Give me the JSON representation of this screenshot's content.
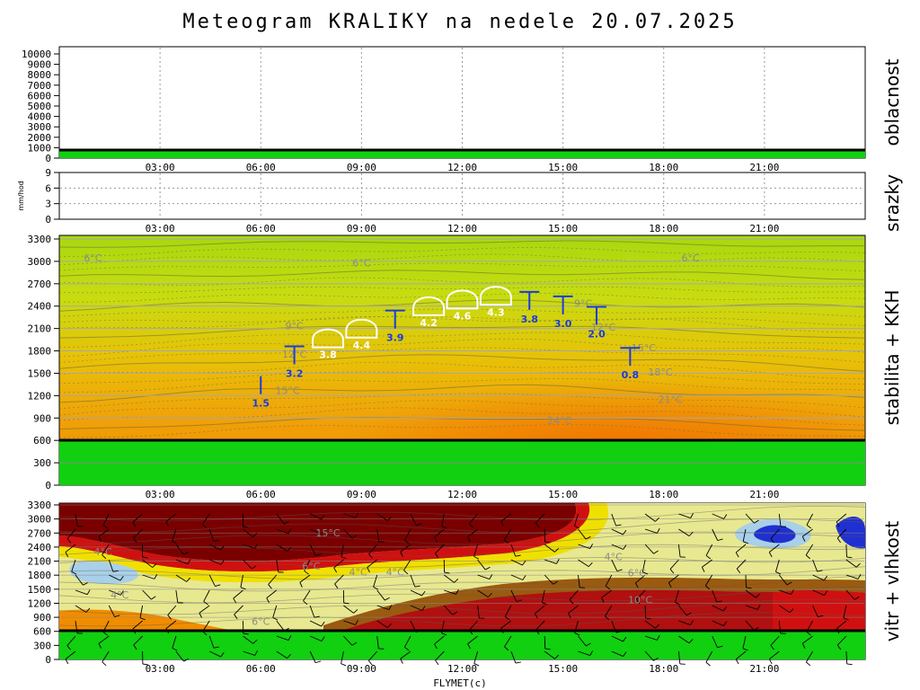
{
  "title": "Meteogram KRALIKY na nedele 20.07.2025",
  "footer": "FLYMET(c)",
  "colors": {
    "terrain": "#10d010",
    "panel_border": "#000000",
    "kkh_marker": "#1a3cdc",
    "kkh_cloud": "#ffffff"
  },
  "time_ticks": [
    "03:00",
    "06:00",
    "09:00",
    "12:00",
    "15:00",
    "18:00",
    "21:00"
  ],
  "chart_data": [
    {
      "panel": "oblacnost",
      "type": "area",
      "side_label": "oblacnost",
      "x_ticks": [
        "03:00",
        "06:00",
        "09:00",
        "12:00",
        "15:00",
        "18:00",
        "21:00"
      ],
      "y_ticks": [
        0,
        1000,
        2000,
        3000,
        4000,
        5000,
        6000,
        7000,
        8000,
        9000,
        10000
      ],
      "ylim": [
        0,
        10000
      ],
      "terrain_level": 650,
      "clouds": []
    },
    {
      "panel": "srazky",
      "type": "bar",
      "side_label": "srazky",
      "ylabel": "mm/hod",
      "x_ticks": [
        "03:00",
        "06:00",
        "09:00",
        "12:00",
        "15:00",
        "18:00",
        "21:00"
      ],
      "y_ticks": [
        0,
        3,
        6,
        9
      ],
      "ylim": [
        0,
        9
      ],
      "values": []
    },
    {
      "panel": "stabilita",
      "type": "heatmap",
      "side_label": "stabilita + KKH",
      "x_ticks": [
        "03:00",
        "06:00",
        "09:00",
        "12:00",
        "15:00",
        "18:00",
        "21:00"
      ],
      "y_ticks": [
        0,
        300,
        600,
        900,
        1200,
        1500,
        1800,
        2100,
        2400,
        2700,
        3000,
        3300
      ],
      "ylim": [
        0,
        3300
      ],
      "terrain_level": 650,
      "isotherm_labels": [
        {
          "text": "6°C",
          "time": 1.0,
          "alt": 3050
        },
        {
          "text": "6°C",
          "time": 9.0,
          "alt": 2980
        },
        {
          "text": "6°C",
          "time": 18.8,
          "alt": 3050
        },
        {
          "text": "9°C",
          "time": 7.0,
          "alt": 2140
        },
        {
          "text": "9°C",
          "time": 15.6,
          "alt": 2440
        },
        {
          "text": "12°C",
          "time": 7.0,
          "alt": 1760
        },
        {
          "text": "12°C",
          "time": 16.2,
          "alt": 2120
        },
        {
          "text": "15°C",
          "time": 6.8,
          "alt": 1270
        },
        {
          "text": "15°C",
          "time": 17.4,
          "alt": 1840
        },
        {
          "text": "18°C",
          "time": 17.9,
          "alt": 1520
        },
        {
          "text": "21°C",
          "time": 18.2,
          "alt": 1150
        },
        {
          "text": "24°C",
          "time": 14.9,
          "alt": 870
        }
      ],
      "kkh": [
        {
          "time": 6.0,
          "value": "1.5",
          "cloud": false,
          "alt": 1340
        },
        {
          "time": 7.0,
          "value": "3.2",
          "cloud": false,
          "alt": 1740
        },
        {
          "time": 8.0,
          "value": "3.8",
          "cloud": true,
          "alt": 1920
        },
        {
          "time": 9.0,
          "value": "4.4",
          "cloud": true,
          "alt": 2050
        },
        {
          "time": 10.0,
          "value": "3.9",
          "cloud": false,
          "alt": 2220
        },
        {
          "time": 11.0,
          "value": "4.2",
          "cloud": true,
          "alt": 2350
        },
        {
          "time": 12.0,
          "value": "4.6",
          "cloud": true,
          "alt": 2440
        },
        {
          "time": 13.0,
          "value": "4.3",
          "cloud": true,
          "alt": 2490
        },
        {
          "time": 14.0,
          "value": "3.8",
          "cloud": false,
          "alt": 2470
        },
        {
          "time": 15.0,
          "value": "3.0",
          "cloud": false,
          "alt": 2410
        },
        {
          "time": 16.0,
          "value": "2.0",
          "cloud": false,
          "alt": 2270
        },
        {
          "time": 17.0,
          "value": "0.8",
          "cloud": false,
          "alt": 1720
        }
      ]
    },
    {
      "panel": "vitr",
      "type": "heatmap",
      "side_label": "vitr + vlhkost",
      "x_ticks": [
        "03:00",
        "06:00",
        "09:00",
        "12:00",
        "15:00",
        "18:00",
        "21:00"
      ],
      "y_ticks": [
        0,
        300,
        600,
        900,
        1200,
        1500,
        1800,
        2100,
        2400,
        2700,
        3000,
        3300
      ],
      "ylim": [
        0,
        3300
      ],
      "terrain_level": 650,
      "isotherm_labels": [
        {
          "text": "15°C",
          "time": 8.0,
          "alt": 2710
        },
        {
          "text": "4°C",
          "time": 1.3,
          "alt": 2300
        },
        {
          "text": "6°C",
          "time": 7.5,
          "alt": 2000
        },
        {
          "text": "4°C",
          "time": 8.9,
          "alt": 1870
        },
        {
          "text": "4°C",
          "time": 10.0,
          "alt": 1870
        },
        {
          "text": "4°C",
          "time": 1.8,
          "alt": 1380
        },
        {
          "text": "6°C",
          "time": 6.0,
          "alt": 820
        },
        {
          "text": "4°C",
          "time": 16.5,
          "alt": 2200
        },
        {
          "text": "6°C",
          "time": 17.2,
          "alt": 1850
        },
        {
          "text": "10°C",
          "time": 17.3,
          "alt": 1280
        }
      ]
    }
  ]
}
